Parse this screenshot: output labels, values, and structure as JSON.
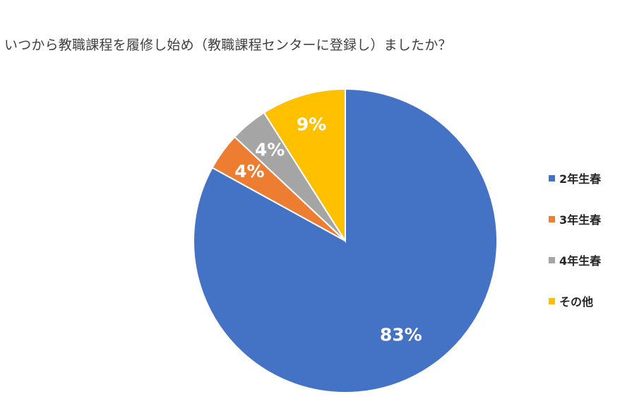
{
  "chart_data": {
    "type": "pie",
    "title": "いつから教職課程を履修し始め（教職課程センターに登録し）ましたか？",
    "categories": [
      "2年生春",
      "3年生春",
      "4年生春",
      "その他"
    ],
    "values": [
      83,
      4,
      4,
      9
    ],
    "labels": [
      "83%",
      "4%",
      "4%",
      "9%"
    ],
    "colors": [
      "#4472C4",
      "#ED7D31",
      "#A5A5A5",
      "#FFC000"
    ],
    "legend": "right"
  }
}
